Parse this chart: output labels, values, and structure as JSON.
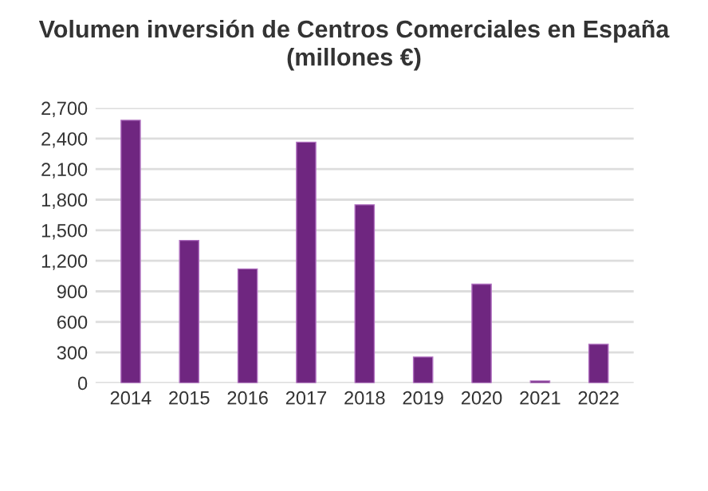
{
  "chart_data": {
    "type": "bar",
    "title": "Volumen inversión de Centros Comerciales en España\n(millones €)",
    "categories": [
      "2014",
      "2015",
      "2016",
      "2017",
      "2018",
      "2019",
      "2020",
      "2021",
      "2022"
    ],
    "values": [
      2580,
      1400,
      1120,
      2365,
      1750,
      255,
      970,
      20,
      380
    ],
    "color": "#6f2680",
    "ylim": [
      0,
      2700
    ],
    "yticks": [
      {
        "value": 0,
        "label": "0"
      },
      {
        "value": 300,
        "label": "300"
      },
      {
        "value": 600,
        "label": "600"
      },
      {
        "value": 900,
        "label": "900"
      },
      {
        "value": 1200,
        "label": "1,200"
      },
      {
        "value": 1500,
        "label": "1,500"
      },
      {
        "value": 1800,
        "label": "1,800"
      },
      {
        "value": 2100,
        "label": "2,100"
      },
      {
        "value": 2400,
        "label": "2,400"
      },
      {
        "value": 2700,
        "label": "2,700"
      }
    ],
    "grid": "y",
    "legend": false
  }
}
